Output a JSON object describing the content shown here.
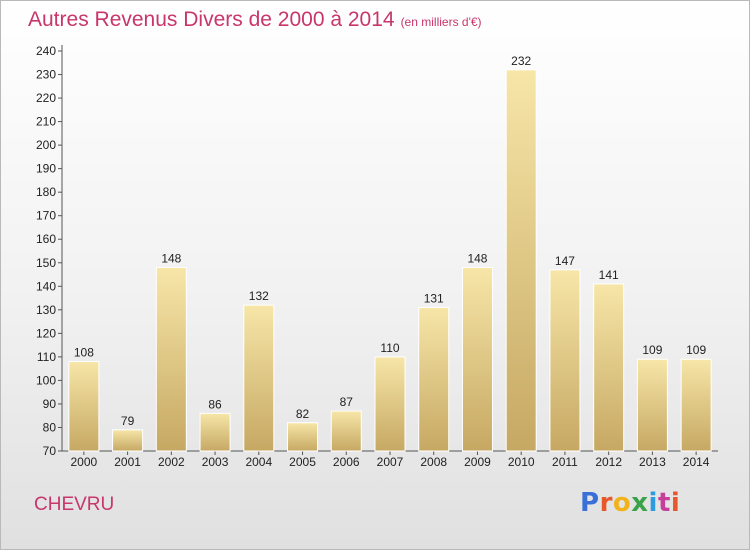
{
  "title": "Autres Revenus Divers de 2000 à 2014",
  "subtitle": "(en milliers d'€)",
  "city": "CHEVRU",
  "logo": {
    "text": "Proxiti",
    "colors": [
      "#3a6fd8",
      "#e8572a",
      "#f2b21b",
      "#3aa34a",
      "#2c9be0",
      "#c83e9b",
      "#e8572a"
    ]
  },
  "colors": {
    "accent": "#c8366b",
    "bar_light": "#f6e3a4",
    "bar_dark": "#c8ab66"
  },
  "chart_data": {
    "type": "bar",
    "categories": [
      "2000",
      "2001",
      "2002",
      "2003",
      "2004",
      "2005",
      "2006",
      "2007",
      "2008",
      "2009",
      "2010",
      "2011",
      "2012",
      "2013",
      "2014"
    ],
    "values": [
      108,
      79,
      148,
      86,
      132,
      82,
      87,
      110,
      131,
      148,
      232,
      147,
      141,
      109,
      109
    ],
    "ylim": [
      70,
      240
    ],
    "yticks": [
      70,
      80,
      90,
      100,
      110,
      120,
      130,
      140,
      150,
      160,
      170,
      180,
      190,
      200,
      210,
      220,
      230,
      240
    ],
    "grid": false,
    "legend": "none"
  }
}
